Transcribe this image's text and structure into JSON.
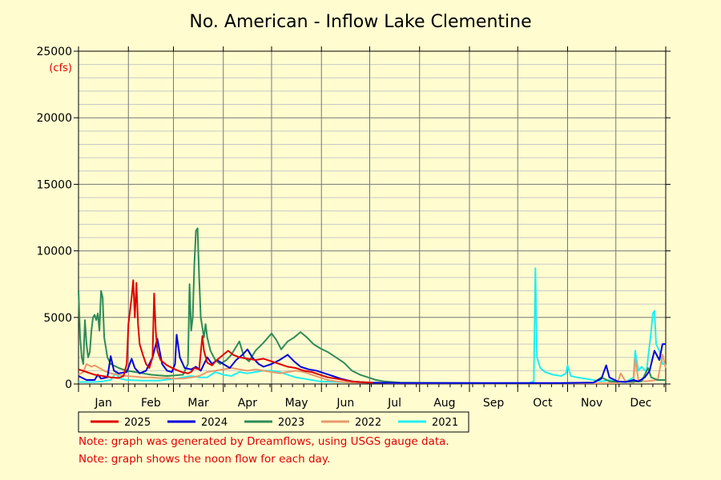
{
  "chart_data": {
    "type": "line",
    "title": "No. American - Inflow Lake Clementine",
    "ylabel": "(cfs)",
    "xlabel": "",
    "ylim": [
      0,
      25000
    ],
    "y_ticks": [
      "0",
      "5000",
      "10000",
      "15000",
      "20000",
      "25000"
    ],
    "x_ticks": [
      "Jan",
      "Feb",
      "Mar",
      "Apr",
      "May",
      "Jun",
      "Jul",
      "Aug",
      "Sep",
      "Oct",
      "Nov",
      "Dec"
    ],
    "x_unit": "day of year",
    "xlim": [
      0,
      365
    ],
    "grid": true,
    "legend_position": "bottom",
    "series": [
      {
        "name": "2025",
        "color": "#e00000",
        "points": [
          [
            0,
            1100
          ],
          [
            5,
            900
          ],
          [
            10,
            700
          ],
          [
            15,
            600
          ],
          [
            20,
            500
          ],
          [
            25,
            450
          ],
          [
            28,
            600
          ],
          [
            30,
            1500
          ],
          [
            31,
            4500
          ],
          [
            33,
            6500
          ],
          [
            34,
            7800
          ],
          [
            35,
            5000
          ],
          [
            36,
            7600
          ],
          [
            37,
            4500
          ],
          [
            38,
            3000
          ],
          [
            40,
            2200
          ],
          [
            42,
            1500
          ],
          [
            44,
            1200
          ],
          [
            46,
            2000
          ],
          [
            47,
            6800
          ],
          [
            48,
            4000
          ],
          [
            49,
            2500
          ],
          [
            51,
            1800
          ],
          [
            55,
            1400
          ],
          [
            60,
            1100
          ],
          [
            64,
            900
          ],
          [
            68,
            800
          ],
          [
            70,
            900
          ],
          [
            72,
            1200
          ],
          [
            75,
            1100
          ],
          [
            77,
            3600
          ],
          [
            78,
            2500
          ],
          [
            80,
            1600
          ],
          [
            83,
            1400
          ],
          [
            86,
            1800
          ],
          [
            90,
            2200
          ],
          [
            93,
            2500
          ],
          [
            96,
            2200
          ],
          [
            100,
            2000
          ],
          [
            105,
            1900
          ],
          [
            110,
            1800
          ],
          [
            115,
            1900
          ],
          [
            120,
            1700
          ],
          [
            125,
            1500
          ],
          [
            130,
            1300
          ],
          [
            135,
            1200
          ],
          [
            140,
            1000
          ],
          [
            145,
            900
          ],
          [
            150,
            700
          ],
          [
            155,
            500
          ],
          [
            160,
            400
          ],
          [
            165,
            300
          ],
          [
            170,
            200
          ],
          [
            175,
            150
          ],
          [
            180,
            120
          ],
          [
            183,
            100
          ]
        ]
      },
      {
        "name": "2024",
        "color": "#0000dd",
        "points": [
          [
            0,
            600
          ],
          [
            5,
            300
          ],
          [
            10,
            300
          ],
          [
            12,
            700
          ],
          [
            14,
            400
          ],
          [
            18,
            500
          ],
          [
            20,
            2100
          ],
          [
            22,
            1000
          ],
          [
            25,
            800
          ],
          [
            30,
            900
          ],
          [
            33,
            1900
          ],
          [
            35,
            1200
          ],
          [
            38,
            800
          ],
          [
            42,
            1000
          ],
          [
            46,
            2000
          ],
          [
            49,
            3400
          ],
          [
            52,
            1500
          ],
          [
            55,
            1000
          ],
          [
            58,
            900
          ],
          [
            60,
            1500
          ],
          [
            61,
            3700
          ],
          [
            63,
            2000
          ],
          [
            66,
            1200
          ],
          [
            70,
            1100
          ],
          [
            73,
            1300
          ],
          [
            76,
            1000
          ],
          [
            80,
            2000
          ],
          [
            83,
            1500
          ],
          [
            86,
            1800
          ],
          [
            90,
            1500
          ],
          [
            94,
            1200
          ],
          [
            98,
            1800
          ],
          [
            102,
            2200
          ],
          [
            105,
            2600
          ],
          [
            108,
            2000
          ],
          [
            112,
            1500
          ],
          [
            115,
            1300
          ],
          [
            120,
            1500
          ],
          [
            125,
            1800
          ],
          [
            130,
            2200
          ],
          [
            134,
            1700
          ],
          [
            138,
            1300
          ],
          [
            143,
            1100
          ],
          [
            148,
            1000
          ],
          [
            153,
            800
          ],
          [
            158,
            600
          ],
          [
            163,
            400
          ],
          [
            170,
            200
          ],
          [
            180,
            100
          ],
          [
            200,
            80
          ],
          [
            250,
            80
          ],
          [
            300,
            80
          ],
          [
            320,
            100
          ],
          [
            325,
            400
          ],
          [
            328,
            1400
          ],
          [
            330,
            500
          ],
          [
            335,
            200
          ],
          [
            340,
            150
          ],
          [
            345,
            300
          ],
          [
            348,
            200
          ],
          [
            352,
            500
          ],
          [
            355,
            1000
          ],
          [
            358,
            2500
          ],
          [
            361,
            1800
          ],
          [
            363,
            3000
          ],
          [
            365,
            3000
          ]
        ]
      },
      {
        "name": "2023",
        "color": "#2e8b57",
        "points": [
          [
            0,
            7000
          ],
          [
            1,
            3500
          ],
          [
            2,
            2000
          ],
          [
            3,
            1500
          ],
          [
            4,
            4800
          ],
          [
            5,
            3000
          ],
          [
            6,
            2000
          ],
          [
            7,
            2400
          ],
          [
            8,
            4000
          ],
          [
            9,
            5000
          ],
          [
            10,
            5200
          ],
          [
            11,
            4800
          ],
          [
            12,
            5300
          ],
          [
            13,
            4000
          ],
          [
            14,
            7000
          ],
          [
            15,
            6500
          ],
          [
            16,
            3500
          ],
          [
            18,
            2000
          ],
          [
            20,
            1500
          ],
          [
            25,
            1200
          ],
          [
            30,
            1000
          ],
          [
            35,
            900
          ],
          [
            40,
            800
          ],
          [
            45,
            700
          ],
          [
            50,
            650
          ],
          [
            55,
            600
          ],
          [
            60,
            650
          ],
          [
            65,
            700
          ],
          [
            68,
            1500
          ],
          [
            69,
            7500
          ],
          [
            70,
            4000
          ],
          [
            71,
            5000
          ],
          [
            72,
            9000
          ],
          [
            73,
            11500
          ],
          [
            74,
            11700
          ],
          [
            75,
            8000
          ],
          [
            76,
            5000
          ],
          [
            78,
            3500
          ],
          [
            79,
            4500
          ],
          [
            80,
            3500
          ],
          [
            82,
            2500
          ],
          [
            85,
            1800
          ],
          [
            88,
            1500
          ],
          [
            92,
            1800
          ],
          [
            95,
            2200
          ],
          [
            98,
            2800
          ],
          [
            100,
            3200
          ],
          [
            103,
            2000
          ],
          [
            106,
            1700
          ],
          [
            110,
            2500
          ],
          [
            115,
            3100
          ],
          [
            120,
            3800
          ],
          [
            123,
            3300
          ],
          [
            126,
            2600
          ],
          [
            130,
            3200
          ],
          [
            134,
            3500
          ],
          [
            138,
            3900
          ],
          [
            142,
            3500
          ],
          [
            146,
            3000
          ],
          [
            150,
            2700
          ],
          [
            155,
            2400
          ],
          [
            160,
            2000
          ],
          [
            165,
            1600
          ],
          [
            170,
            1000
          ],
          [
            175,
            700
          ],
          [
            180,
            500
          ],
          [
            185,
            300
          ],
          [
            190,
            200
          ],
          [
            200,
            100
          ],
          [
            250,
            60
          ],
          [
            300,
            60
          ],
          [
            320,
            100
          ],
          [
            325,
            500
          ],
          [
            330,
            200
          ],
          [
            340,
            150
          ],
          [
            350,
            200
          ],
          [
            354,
            1200
          ],
          [
            356,
            500
          ],
          [
            360,
            300
          ],
          [
            365,
            300
          ]
        ]
      },
      {
        "name": "2022",
        "color": "#e9996b",
        "points": [
          [
            0,
            700
          ],
          [
            3,
            900
          ],
          [
            5,
            1500
          ],
          [
            8,
            1300
          ],
          [
            10,
            1400
          ],
          [
            13,
            1200
          ],
          [
            16,
            1000
          ],
          [
            20,
            800
          ],
          [
            25,
            700
          ],
          [
            30,
            600
          ],
          [
            35,
            550
          ],
          [
            40,
            500
          ],
          [
            45,
            500
          ],
          [
            50,
            450
          ],
          [
            55,
            450
          ],
          [
            60,
            400
          ],
          [
            65,
            400
          ],
          [
            70,
            500
          ],
          [
            75,
            600
          ],
          [
            80,
            900
          ],
          [
            85,
            1000
          ],
          [
            90,
            1100
          ],
          [
            95,
            1200
          ],
          [
            100,
            1100
          ],
          [
            105,
            1000
          ],
          [
            110,
            1100
          ],
          [
            115,
            1000
          ],
          [
            120,
            900
          ],
          [
            125,
            800
          ],
          [
            130,
            900
          ],
          [
            135,
            1000
          ],
          [
            140,
            900
          ],
          [
            145,
            700
          ],
          [
            150,
            500
          ],
          [
            155,
            300
          ],
          [
            160,
            200
          ],
          [
            170,
            100
          ],
          [
            200,
            60
          ],
          [
            250,
            50
          ],
          [
            300,
            50
          ],
          [
            335,
            60
          ],
          [
            337,
            800
          ],
          [
            340,
            200
          ],
          [
            345,
            100
          ],
          [
            346,
            1900
          ],
          [
            348,
            300
          ],
          [
            352,
            200
          ],
          [
            360,
            300
          ],
          [
            363,
            2200
          ],
          [
            365,
            1200
          ]
        ]
      },
      {
        "name": "2021",
        "color": "#20eef0",
        "points": [
          [
            0,
            150
          ],
          [
            10,
            150
          ],
          [
            15,
            200
          ],
          [
            20,
            300
          ],
          [
            23,
            800
          ],
          [
            26,
            400
          ],
          [
            30,
            300
          ],
          [
            40,
            250
          ],
          [
            50,
            250
          ],
          [
            60,
            400
          ],
          [
            70,
            600
          ],
          [
            75,
            500
          ],
          [
            80,
            500
          ],
          [
            85,
            900
          ],
          [
            90,
            700
          ],
          [
            95,
            600
          ],
          [
            100,
            900
          ],
          [
            105,
            800
          ],
          [
            110,
            900
          ],
          [
            115,
            1000
          ],
          [
            120,
            1000
          ],
          [
            125,
            900
          ],
          [
            130,
            700
          ],
          [
            135,
            500
          ],
          [
            140,
            400
          ],
          [
            145,
            300
          ],
          [
            150,
            200
          ],
          [
            160,
            150
          ],
          [
            180,
            100
          ],
          [
            200,
            80
          ],
          [
            250,
            60
          ],
          [
            280,
            70
          ],
          [
            283,
            200
          ],
          [
            284,
            8700
          ],
          [
            285,
            2000
          ],
          [
            287,
            1200
          ],
          [
            290,
            900
          ],
          [
            295,
            700
          ],
          [
            300,
            600
          ],
          [
            303,
            800
          ],
          [
            304,
            1400
          ],
          [
            306,
            600
          ],
          [
            310,
            500
          ],
          [
            315,
            400
          ],
          [
            320,
            300
          ],
          [
            325,
            200
          ],
          [
            330,
            300
          ],
          [
            335,
            200
          ],
          [
            340,
            150
          ],
          [
            345,
            500
          ],
          [
            346,
            2500
          ],
          [
            348,
            1000
          ],
          [
            350,
            1300
          ],
          [
            353,
            900
          ],
          [
            356,
            4000
          ],
          [
            357,
            5300
          ],
          [
            358,
            5500
          ],
          [
            359,
            3000
          ],
          [
            361,
            2500
          ],
          [
            363,
            1500
          ],
          [
            365,
            1500
          ]
        ]
      }
    ]
  },
  "notes": [
    "Note: graph was generated by Dreamflows, using USGS gauge data.",
    "Note: graph shows the noon flow for each day."
  ]
}
